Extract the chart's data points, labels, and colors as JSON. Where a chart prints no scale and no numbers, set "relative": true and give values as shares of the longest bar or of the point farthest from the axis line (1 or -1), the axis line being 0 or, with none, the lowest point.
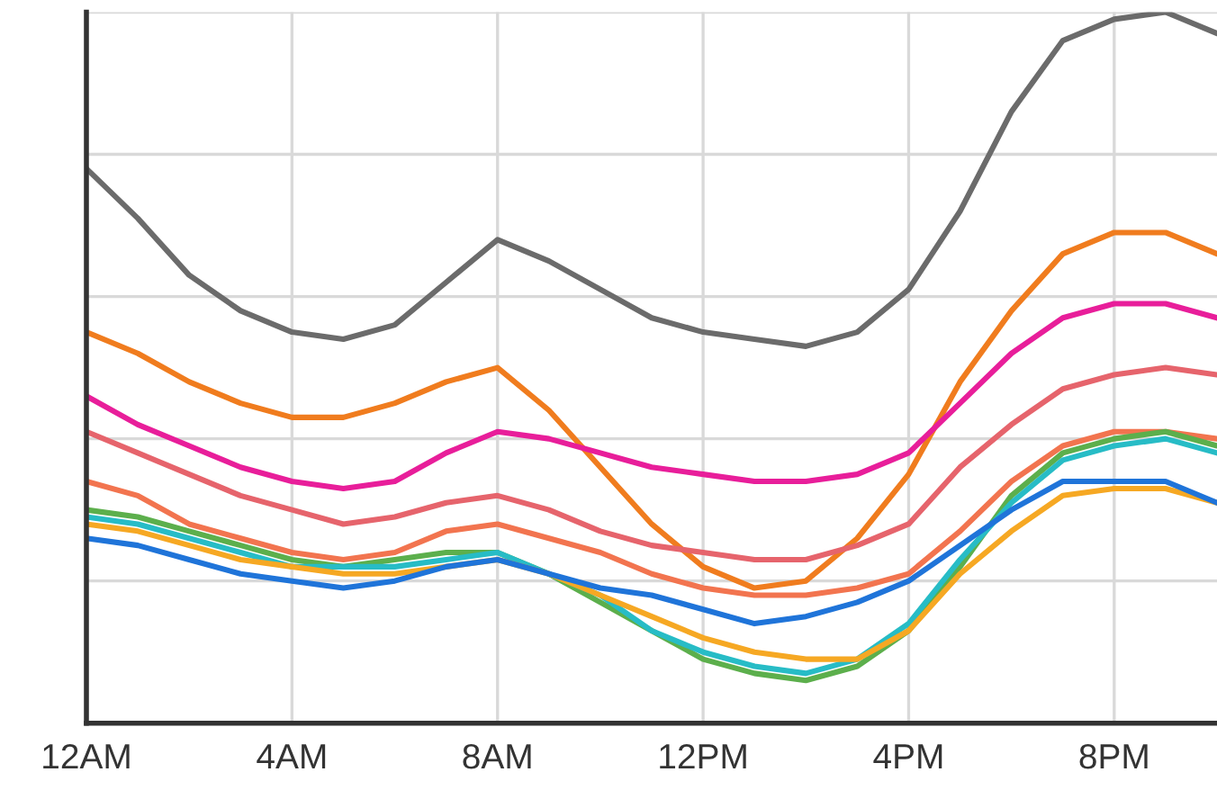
{
  "chart_data": {
    "type": "line",
    "relative": true,
    "categories": [
      "12AM",
      null,
      null,
      null,
      "4AM",
      null,
      null,
      null,
      "8AM",
      null,
      null,
      null,
      "12PM",
      null,
      null,
      null,
      "4PM",
      null,
      null,
      null,
      "8PM",
      null,
      null
    ],
    "tick_labels": "x",
    "grid": true,
    "marker": "none",
    "line_style": "solid",
    "series": [
      {
        "color": "#6b6b6b",
        "values": [
          0.78,
          0.71,
          0.63,
          0.58,
          0.55,
          0.54,
          0.56,
          0.62,
          0.68,
          0.65,
          0.61,
          0.57,
          0.55,
          0.54,
          0.53,
          0.55,
          0.61,
          0.72,
          0.86,
          0.96,
          0.99,
          1.0,
          0.97
        ]
      },
      {
        "color": "#f07c1e",
        "values": [
          0.55,
          0.52,
          0.48,
          0.45,
          0.43,
          0.43,
          0.45,
          0.48,
          0.5,
          0.44,
          0.36,
          0.28,
          0.22,
          0.19,
          0.2,
          0.26,
          0.35,
          0.48,
          0.58,
          0.66,
          0.69,
          0.69,
          0.66
        ]
      },
      {
        "color": "#e81e9a",
        "values": [
          0.46,
          0.42,
          0.39,
          0.36,
          0.34,
          0.33,
          0.34,
          0.38,
          0.41,
          0.4,
          0.38,
          0.36,
          0.35,
          0.34,
          0.34,
          0.35,
          0.38,
          0.45,
          0.52,
          0.57,
          0.59,
          0.59,
          0.57
        ]
      },
      {
        "color": "#e6646c",
        "values": [
          0.41,
          0.38,
          0.35,
          0.32,
          0.3,
          0.28,
          0.29,
          0.31,
          0.32,
          0.3,
          0.27,
          0.25,
          0.24,
          0.23,
          0.23,
          0.25,
          0.28,
          0.36,
          0.42,
          0.47,
          0.49,
          0.5,
          0.49
        ]
      },
      {
        "color": "#f2744f",
        "values": [
          0.34,
          0.32,
          0.28,
          0.26,
          0.24,
          0.23,
          0.24,
          0.27,
          0.28,
          0.26,
          0.24,
          0.21,
          0.19,
          0.18,
          0.18,
          0.19,
          0.21,
          0.27,
          0.34,
          0.39,
          0.41,
          0.41,
          0.4
        ]
      },
      {
        "color": "#5caf4c",
        "values": [
          0.3,
          0.29,
          0.27,
          0.25,
          0.23,
          0.22,
          0.23,
          0.24,
          0.24,
          0.21,
          0.17,
          0.13,
          0.09,
          0.07,
          0.06,
          0.08,
          0.13,
          0.22,
          0.32,
          0.38,
          0.4,
          0.41,
          0.39
        ]
      },
      {
        "color": "#27bcc6",
        "values": [
          0.29,
          0.28,
          0.26,
          0.24,
          0.22,
          0.22,
          0.22,
          0.23,
          0.24,
          0.21,
          0.18,
          0.13,
          0.1,
          0.08,
          0.07,
          0.09,
          0.14,
          0.23,
          0.31,
          0.37,
          0.39,
          0.4,
          0.38
        ]
      },
      {
        "color": "#f6a823",
        "values": [
          0.28,
          0.27,
          0.25,
          0.23,
          0.22,
          0.21,
          0.21,
          0.22,
          0.23,
          0.21,
          0.18,
          0.15,
          0.12,
          0.1,
          0.09,
          0.09,
          0.13,
          0.21,
          0.27,
          0.32,
          0.33,
          0.33,
          0.31
        ]
      },
      {
        "color": "#1f74d9",
        "values": [
          0.26,
          0.25,
          0.23,
          0.21,
          0.2,
          0.19,
          0.2,
          0.22,
          0.23,
          0.21,
          0.19,
          0.18,
          0.16,
          0.14,
          0.15,
          0.17,
          0.2,
          0.25,
          0.3,
          0.34,
          0.34,
          0.34,
          0.31
        ]
      }
    ]
  }
}
